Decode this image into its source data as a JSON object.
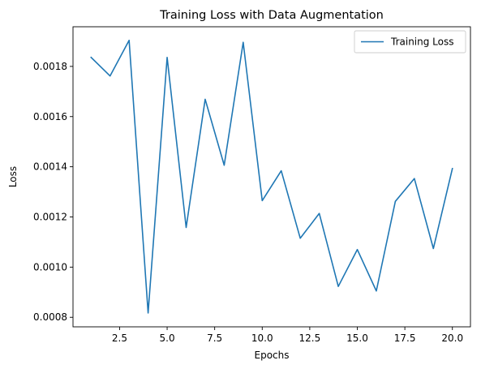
{
  "chart_data": {
    "type": "line",
    "title": "Training Loss with Data Augmentation",
    "xlabel": "Epochs",
    "ylabel": "Loss",
    "xlim": [
      0.05,
      20.95
    ],
    "ylim": [
      0.000762,
      0.001958
    ],
    "xticks": [
      2.5,
      5.0,
      7.5,
      10.0,
      12.5,
      15.0,
      17.5,
      20.0
    ],
    "xtick_labels": [
      "2.5",
      "5.0",
      "7.5",
      "10.0",
      "12.5",
      "15.0",
      "17.5",
      "20.0"
    ],
    "yticks": [
      0.0008,
      0.001,
      0.0012,
      0.0014,
      0.0016,
      0.0018
    ],
    "ytick_labels": [
      "0.0008",
      "0.0010",
      "0.0012",
      "0.0014",
      "0.0016",
      "0.0018"
    ],
    "grid": false,
    "legend_position": "top-right",
    "series": [
      {
        "name": "Training Loss",
        "color": "#1f77b4",
        "x": [
          1,
          2,
          3,
          4,
          5,
          6,
          7,
          8,
          9,
          10,
          11,
          12,
          13,
          14,
          15,
          16,
          17,
          18,
          19,
          20
        ],
        "values": [
          0.001836,
          0.001762,
          0.001904,
          0.000817,
          0.001836,
          0.001158,
          0.001669,
          0.001406,
          0.001896,
          0.001265,
          0.001384,
          0.001115,
          0.001214,
          0.000923,
          0.00107,
          0.000905,
          0.001262,
          0.001353,
          0.001074,
          0.001393
        ]
      }
    ]
  }
}
